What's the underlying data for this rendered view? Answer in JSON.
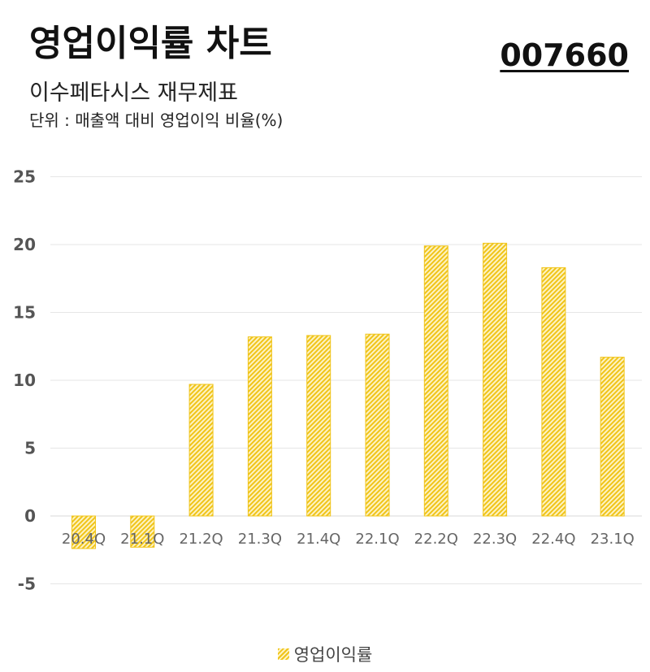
{
  "header": {
    "title": "영업이익률 차트",
    "code": "007660",
    "subtitle": "이수페타시스 재무제표",
    "unit": "단위 : 매출액 대비 영업이익 비율(%)"
  },
  "colors": {
    "bar": "#f0c419",
    "bar_light": "#fdf3c4",
    "grid": "#e6e6e6"
  },
  "chart_data": {
    "type": "bar",
    "categories": [
      "20.4Q",
      "21.1Q",
      "21.2Q",
      "21.3Q",
      "21.4Q",
      "22.1Q",
      "22.2Q",
      "22.3Q",
      "22.4Q",
      "23.1Q"
    ],
    "series": [
      {
        "name": "영업이익률",
        "values": [
          -2.4,
          -2.3,
          9.7,
          13.2,
          13.3,
          13.4,
          19.9,
          20.1,
          18.3,
          11.7
        ]
      }
    ],
    "yticks": [
      "25",
      "20",
      "15",
      "10",
      "5",
      "0",
      "-5"
    ],
    "ylim": [
      -5,
      25
    ],
    "grid": true,
    "legend_position": "bottom"
  }
}
